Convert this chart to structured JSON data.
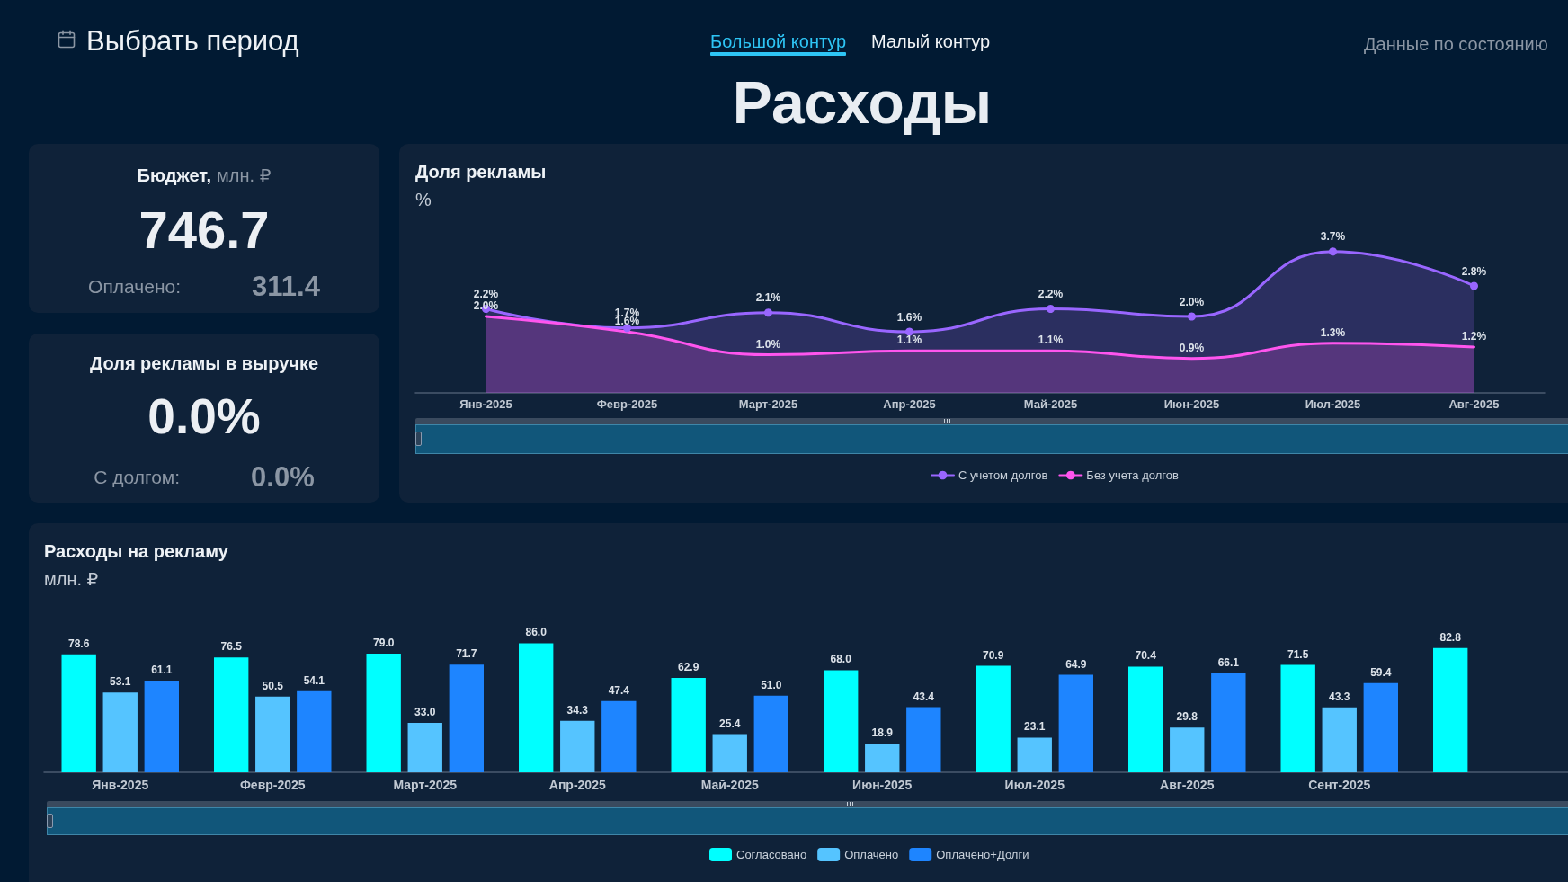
{
  "chart_data": [
    {
      "type": "other",
      "title": "Расходы",
      "annotations": [
        "Выбрать период",
        "Большой контур",
        "Малый контур",
        "Данные по состоянию"
      ]
    },
    {
      "type": "other",
      "title": "Бюджет,",
      "subtitle": "млн. ₽",
      "annotations": [
        "746.7",
        "Оплачено:",
        "311.4"
      ]
    },
    {
      "type": "other",
      "title": "Доля рекламы в выручке",
      "annotations": [
        "0.0%",
        "С долгом:",
        "0.0%"
      ]
    },
    {
      "type": "area",
      "title": "Доля рекламы",
      "ylabel": "%",
      "categories": [
        "Янв-2025",
        "Февр-2025",
        "Март-2025",
        "Апр-2025",
        "Май-2025",
        "Июн-2025",
        "Июл-2025",
        "Авг-2025"
      ],
      "series": [
        {
          "name": "С учетом долгов",
          "color": "#9966ff",
          "marker": "circle",
          "values": [
            2.2,
            1.7,
            2.1,
            1.6,
            2.2,
            2.0,
            3.7,
            2.8
          ],
          "value_labels": [
            "2.2%",
            "1.7%",
            "2.1%",
            "1.6%",
            "2.2%",
            "2.0%",
            "3.7%",
            "2.8%"
          ]
        },
        {
          "name": "Без учета долгов",
          "color": "#ff55ee",
          "marker": "none",
          "values": [
            2.0,
            1.6,
            1.0,
            1.1,
            1.1,
            0.9,
            1.3,
            1.2
          ],
          "value_labels": [
            "2.0%",
            "1.6%",
            "1.0%",
            "1.1%",
            "1.1%",
            "0.9%",
            "1.3%",
            "1.2%"
          ]
        }
      ],
      "legend": "bottom",
      "tick_labels": "x"
    },
    {
      "type": "bar",
      "title": "Расходы на рекламу",
      "ylabel": "млн. ₽",
      "categories": [
        "Янв-2025",
        "Февр-2025",
        "Март-2025",
        "Апр-2025",
        "Май-2025",
        "Июн-2025",
        "Июл-2025",
        "Авг-2025",
        "Сент-2025",
        null
      ],
      "series": [
        {
          "name": "Согласовано",
          "color": "#00ffff",
          "values": [
            78.6,
            76.5,
            79.0,
            86.0,
            62.9,
            68.0,
            70.9,
            70.4,
            71.5,
            82.8
          ],
          "value_labels": [
            "78.6",
            "76.5",
            "79.0",
            "86.0",
            "62.9",
            "68.0",
            "70.9",
            "70.4",
            "71.5",
            "82.8"
          ]
        },
        {
          "name": "Оплачено",
          "color": "#55c4ff",
          "values": [
            53.1,
            50.5,
            33.0,
            34.3,
            25.4,
            18.9,
            23.1,
            29.8,
            43.3,
            null
          ],
          "value_labels": [
            "53.1",
            "50.5",
            "33.0",
            "34.3",
            "25.4",
            "18.9",
            "23.1",
            "29.8",
            "43.3",
            null
          ]
        },
        {
          "name": "Оплачено+Долги",
          "color": "#1e85ff",
          "values": [
            61.1,
            54.1,
            71.7,
            47.4,
            51.0,
            43.4,
            64.9,
            66.1,
            59.4,
            null
          ],
          "value_labels": [
            "61.1",
            "54.1",
            "71.7",
            "47.4",
            "51.0",
            "43.4",
            "64.9",
            "66.1",
            "59.4",
            null
          ]
        }
      ],
      "legend": "bottom",
      "tick_labels": "x"
    }
  ]
}
